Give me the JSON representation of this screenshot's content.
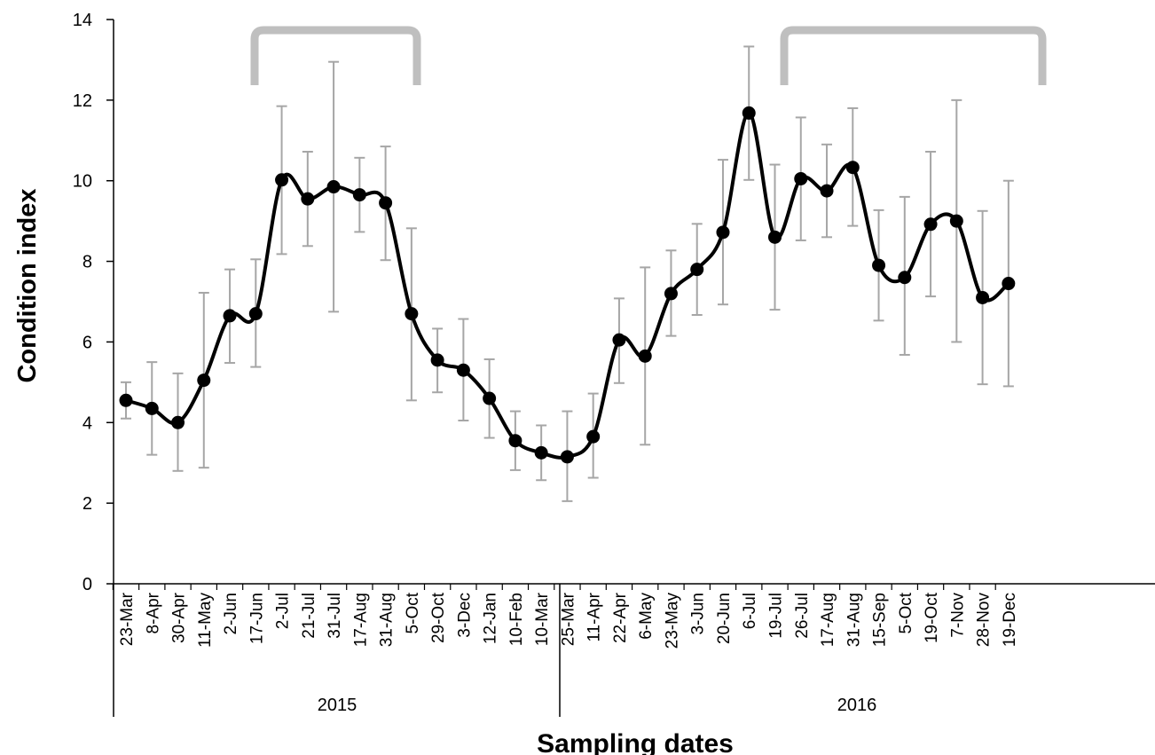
{
  "chart_data": {
    "type": "line",
    "xlabel": "Sampling dates",
    "ylabel": "Condition index",
    "ylim": [
      0,
      14
    ],
    "yticks": [
      0,
      2,
      4,
      6,
      8,
      10,
      12,
      14
    ],
    "grid": false,
    "years": [
      "2015",
      "2016"
    ],
    "categories": [
      "23-Mar",
      "8-Apr",
      "30-Apr",
      "11-May",
      "2-Jun",
      "17-Jun",
      "2-Jul",
      "21-Jul",
      "31-Jul",
      "17-Aug",
      "31-Aug",
      "5-Oct",
      "29-Oct",
      "3-Dec",
      "12-Jan",
      "10-Feb",
      "10-Mar",
      "25-Mar",
      "11-Apr",
      "22-Apr",
      "6-May",
      "23-May",
      "3-Jun",
      "20-Jun",
      "6-Jul",
      "19-Jul",
      "26-Jul",
      "17-Aug",
      "31-Aug",
      "15-Sep",
      "5-Oct",
      "19-Oct",
      "7-Nov",
      "28-Nov",
      "19-Dec"
    ],
    "series": [
      {
        "values": [
          4.55,
          4.35,
          4.0,
          5.05,
          6.65,
          6.7,
          10.02,
          9.55,
          9.85,
          9.65,
          9.45,
          6.7,
          5.55,
          5.3,
          4.6,
          3.55,
          3.25,
          3.15,
          3.65,
          6.05,
          5.65,
          7.2,
          7.8,
          8.72,
          11.68,
          8.6,
          10.05,
          9.75,
          10.33,
          7.9,
          7.6,
          8.92,
          9.0,
          7.1,
          7.45
        ],
        "error_upper": [
          5.0,
          5.5,
          5.22,
          7.22,
          7.8,
          8.05,
          11.85,
          10.72,
          12.95,
          10.57,
          10.85,
          8.82,
          6.33,
          6.57,
          5.57,
          4.28,
          3.93,
          4.28,
          4.72,
          7.08,
          7.85,
          8.27,
          8.93,
          10.52,
          13.33,
          10.4,
          11.57,
          10.9,
          11.8,
          9.27,
          9.6,
          10.72,
          12.0,
          9.25,
          10.0
        ],
        "error_lower": [
          4.1,
          3.2,
          2.8,
          2.88,
          5.48,
          5.38,
          8.18,
          8.38,
          6.75,
          8.73,
          8.03,
          4.55,
          4.75,
          4.05,
          3.62,
          2.82,
          2.57,
          2.05,
          2.63,
          4.98,
          3.45,
          6.15,
          6.67,
          6.93,
          10.02,
          6.8,
          8.52,
          8.6,
          8.88,
          6.53,
          5.68,
          7.13,
          6.0,
          4.95,
          4.9
        ]
      }
    ],
    "colors": {
      "line": "#000000",
      "error_bar": "#a6a6a6",
      "bracket": "#bfbfbf"
    }
  }
}
